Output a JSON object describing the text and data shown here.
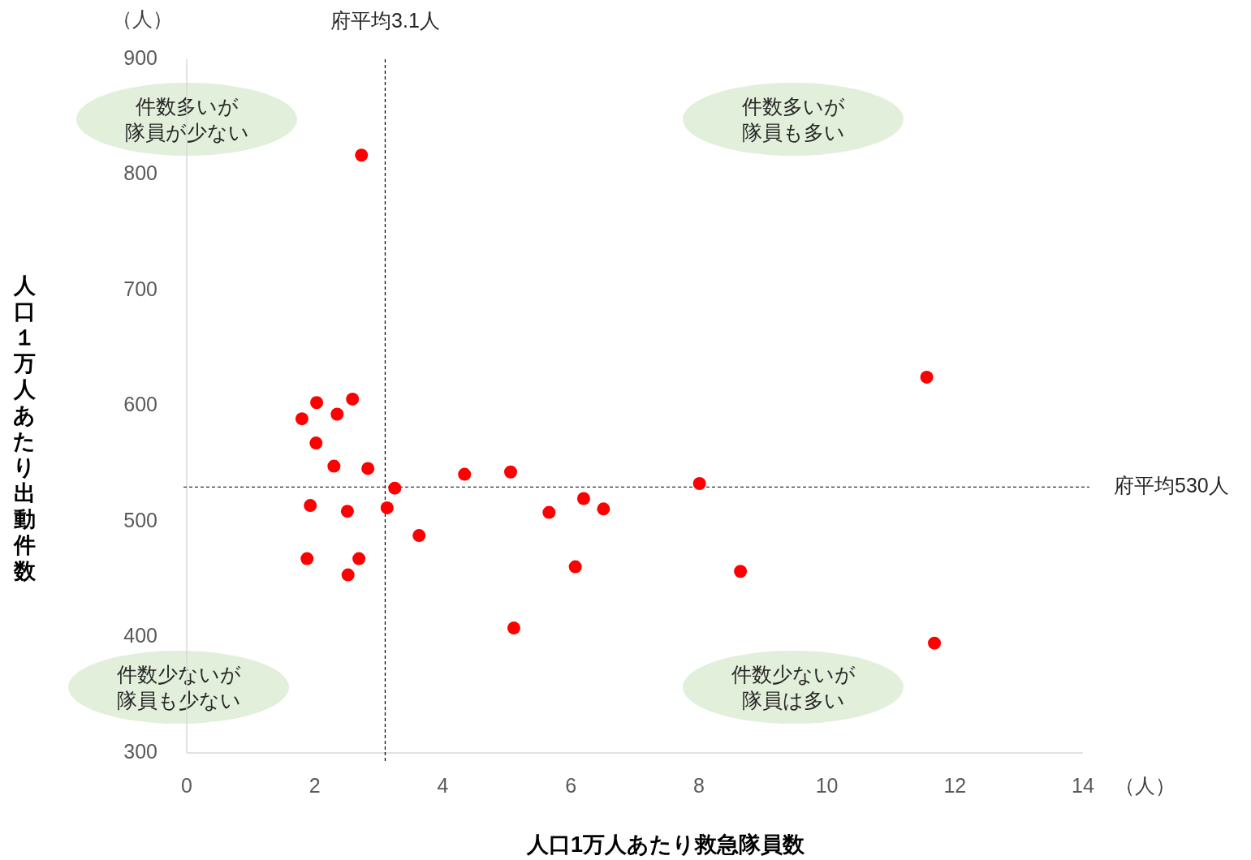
{
  "chart_data": {
    "type": "scatter",
    "xlabel": "人口1万人あたり救急隊員数",
    "ylabel": "人口１万人あたり出動件数",
    "xlim": [
      0,
      14
    ],
    "xticks": [
      0,
      2,
      4,
      6,
      8,
      10,
      12,
      14
    ],
    "ylim": [
      300,
      900
    ],
    "yticks": [
      300,
      400,
      500,
      600,
      700,
      800,
      900
    ],
    "grid": false,
    "marker": "circle",
    "series": [
      {
        "color": "#ff0000",
        "x": [
          2.73,
          11.56,
          1.8,
          2.03,
          2.59,
          2.35,
          2.02,
          2.3,
          2.83,
          3.25,
          4.34,
          5.06,
          8.01,
          1.93,
          2.51,
          3.13,
          3.63,
          5.66,
          6.2,
          6.51,
          1.88,
          2.69,
          2.52,
          6.07,
          8.65,
          5.11,
          11.68
        ],
        "values": [
          817,
          625,
          589,
          603,
          606,
          593,
          568,
          548,
          546,
          529,
          541,
          543,
          533,
          514,
          509,
          512,
          488,
          508,
          520,
          511,
          468,
          468,
          454,
          461,
          457,
          408,
          395
        ]
      }
    ],
    "ref_lines": [
      {
        "axis": "x",
        "value": 3.1,
        "label": "府平均3.1人",
        "line_style": "dashed"
      },
      {
        "axis": "y",
        "value": 530,
        "label": "府平均530人",
        "line_style": "dashed"
      }
    ],
    "annotations": [
      "件数多いが隊員が少ない",
      "件数多いが隊員も多い",
      "件数少ないが隊員も少ない",
      "件数少ないが隊員は多い",
      "（人）",
      "（人）"
    ]
  }
}
